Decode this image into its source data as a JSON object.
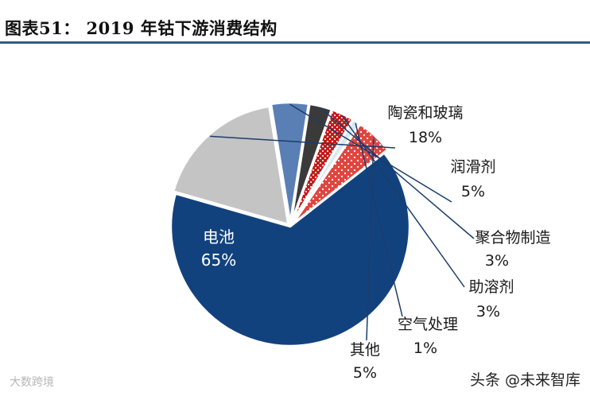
{
  "header": {
    "title": "图表51： 2019 年钴下游消费结构"
  },
  "chart_data": {
    "type": "pie",
    "title": "2019 年钴下游消费结构",
    "slices": [
      {
        "name": "电池",
        "value": 65,
        "label": "65%",
        "color": "#12427e",
        "pattern": "none"
      },
      {
        "name": "陶瓷和玻璃",
        "value": 18,
        "label": "18%",
        "color": "#c4c4c4",
        "pattern": "none"
      },
      {
        "name": "润滑剂",
        "value": 5,
        "label": "5%",
        "color": "#5a7fb4",
        "pattern": "none"
      },
      {
        "name": "聚合物制造",
        "value": 3,
        "label": "3%",
        "color": "#3a3a3a",
        "pattern": "none"
      },
      {
        "name": "助溶剂",
        "value": 3,
        "label": "3%",
        "color": "#c31a1a",
        "pattern": "checker"
      },
      {
        "name": "空气处理",
        "value": 1,
        "label": "1%",
        "color": "#d9e9f3",
        "pattern": "none"
      },
      {
        "name": "其他",
        "value": 5,
        "label": "5%",
        "color": "#e0453f",
        "pattern": "dots"
      }
    ]
  },
  "footer": {
    "credit": "头条 @未来智库",
    "watermark": "大数跨境"
  }
}
